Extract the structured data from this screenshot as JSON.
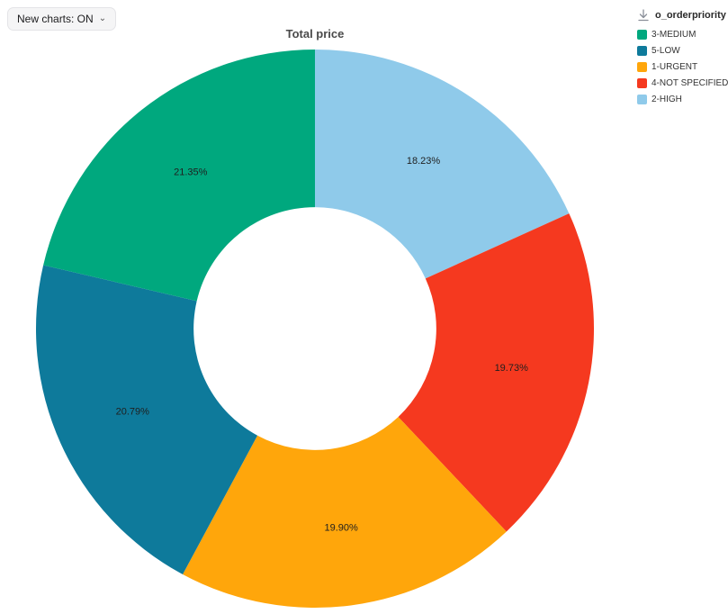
{
  "controls": {
    "new_charts_label": "New charts: ON"
  },
  "icons": {
    "chevron_down_glyph": "⌄",
    "download": "download-icon"
  },
  "chart_data": {
    "type": "pie",
    "subtype": "donut",
    "title": "Total price",
    "value_labels": "percent",
    "start_angle_deg": 0,
    "direction": "clockwise",
    "donut_hole_ratio": 0.435,
    "legend": {
      "title": "o_orderpriority",
      "position": "top-right",
      "items": [
        {
          "label": "3-MEDIUM",
          "color": "#00A87E"
        },
        {
          "label": "5-LOW",
          "color": "#0E7A9B"
        },
        {
          "label": "1-URGENT",
          "color": "#FFA60B"
        },
        {
          "label": "4-NOT SPECIFIED",
          "color": "#F5391F"
        },
        {
          "label": "2-HIGH",
          "color": "#8FCAEA"
        }
      ]
    },
    "slices": [
      {
        "label": "2-HIGH",
        "value": 18.23,
        "display": "18.23%",
        "color": "#8FCAEA"
      },
      {
        "label": "4-NOT SPECIFIED",
        "value": 19.73,
        "display": "19.73%",
        "color": "#F5391F"
      },
      {
        "label": "1-URGENT",
        "value": 19.9,
        "display": "19.90%",
        "color": "#FFA60B"
      },
      {
        "label": "5-LOW",
        "value": 20.79,
        "display": "20.79%",
        "color": "#0E7A9B"
      },
      {
        "label": "3-MEDIUM",
        "value": 21.35,
        "display": "21.35%",
        "color": "#00A87E"
      }
    ]
  }
}
